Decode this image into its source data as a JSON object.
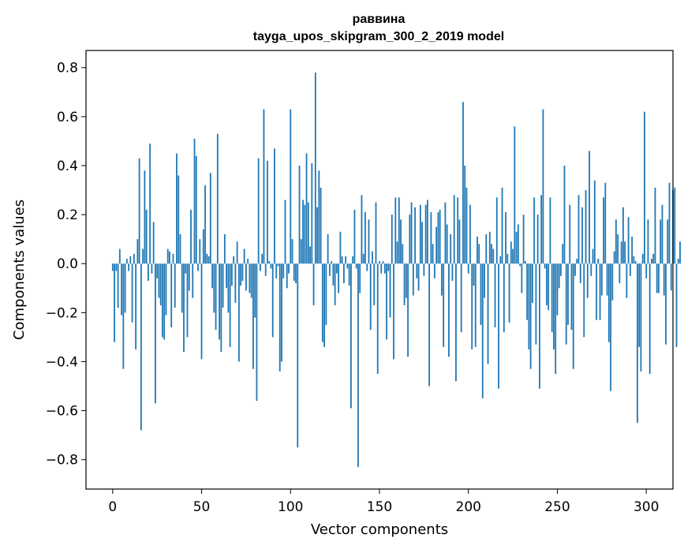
{
  "chart_data": {
    "type": "bar",
    "title": "раввина",
    "subtitle": "tayga_upos_skipgram_300_2_2019 model",
    "xlabel": "Vector components",
    "ylabel": "Components values",
    "xlim": [
      -15,
      315
    ],
    "ylim": [
      -0.92,
      0.87
    ],
    "xticks": [
      0,
      50,
      100,
      150,
      200,
      250,
      300
    ],
    "yticks": [
      -0.8,
      -0.6,
      -0.4,
      -0.2,
      0.0,
      0.2,
      0.4,
      0.6,
      0.8
    ],
    "xtick_labels": [
      "0",
      "50",
      "100",
      "150",
      "200",
      "250",
      "300"
    ],
    "ytick_labels": [
      "−0.8",
      "−0.6",
      "−0.4",
      "−0.2",
      "0.0",
      "0.2",
      "0.4",
      "0.6",
      "0.8"
    ],
    "grid": false,
    "bar_color": "#1f77b4",
    "values": [
      -0.03,
      -0.32,
      -0.03,
      -0.18,
      0.06,
      -0.21,
      -0.43,
      -0.2,
      0.02,
      -0.03,
      0.03,
      -0.24,
      0.04,
      -0.35,
      0.1,
      0.43,
      -0.68,
      0.06,
      0.38,
      0.22,
      -0.07,
      0.49,
      -0.04,
      0.17,
      -0.57,
      -0.06,
      -0.14,
      -0.17,
      -0.3,
      -0.31,
      -0.21,
      0.06,
      0.05,
      -0.26,
      0.04,
      -0.18,
      0.45,
      0.36,
      0.12,
      -0.2,
      -0.36,
      -0.04,
      -0.3,
      -0.11,
      0.22,
      -0.14,
      0.51,
      0.44,
      -0.03,
      0.1,
      -0.39,
      0.14,
      0.32,
      0.04,
      0.03,
      0.37,
      -0.1,
      -0.2,
      -0.27,
      0.53,
      -0.31,
      -0.36,
      -0.18,
      0.12,
      -0.1,
      -0.2,
      -0.34,
      -0.09,
      0.03,
      -0.16,
      0.09,
      -0.4,
      -0.09,
      -0.07,
      0.06,
      -0.11,
      0.02,
      -0.12,
      -0.14,
      -0.43,
      -0.22,
      -0.56,
      0.43,
      -0.03,
      0.04,
      0.63,
      -0.05,
      0.42,
      0.01,
      -0.02,
      -0.3,
      0.47,
      -0.06,
      -0.01,
      -0.44,
      -0.4,
      -0.06,
      0.26,
      -0.1,
      -0.04,
      0.63,
      0.1,
      -0.07,
      -0.08,
      -0.75,
      0.4,
      0.1,
      0.26,
      0.24,
      0.45,
      0.25,
      0.07,
      0.41,
      -0.17,
      0.78,
      0.23,
      0.38,
      0.31,
      -0.32,
      -0.34,
      -0.25,
      0.12,
      -0.05,
      0.01,
      -0.09,
      -0.17,
      -0.04,
      -0.12,
      0.13,
      0.03,
      -0.08,
      0.03,
      -0.02,
      -0.09,
      -0.59,
      0.03,
      0.22,
      -0.02,
      -0.83,
      -0.12,
      0.28,
      0.04,
      0.21,
      -0.03,
      0.18,
      -0.27,
      0.05,
      -0.17,
      0.25,
      -0.45,
      0.01,
      -0.04,
      0.01,
      -0.04,
      -0.31,
      -0.03,
      -0.22,
      0.2,
      -0.39,
      0.27,
      0.09,
      0.27,
      0.18,
      0.08,
      -0.17,
      -0.14,
      -0.38,
      0.2,
      0.25,
      -0.13,
      0.23,
      -0.06,
      -0.11,
      0.24,
      0.17,
      -0.05,
      0.24,
      0.26,
      -0.5,
      0.21,
      0.08,
      -0.06,
      0.15,
      0.21,
      0.22,
      -0.13,
      -0.34,
      0.25,
      0.16,
      -0.38,
      0.12,
      -0.07,
      0.28,
      -0.48,
      0.27,
      0.18,
      -0.28,
      0.66,
      0.4,
      0.31,
      -0.04,
      0.24,
      -0.35,
      -0.09,
      -0.34,
      0.11,
      0.08,
      -0.25,
      -0.55,
      -0.14,
      0.12,
      -0.41,
      0.13,
      0.08,
      0.06,
      -0.26,
      0.27,
      -0.51,
      0.03,
      0.31,
      -0.28,
      0.21,
      0.04,
      -0.24,
      0.09,
      0.06,
      0.56,
      0.13,
      0.16,
      -0.01,
      -0.12,
      0.2,
      0.01,
      -0.23,
      -0.35,
      -0.43,
      -0.16,
      0.27,
      -0.33,
      0.2,
      -0.51,
      0.28,
      0.63,
      -0.02,
      -0.17,
      -0.19,
      0.27,
      -0.28,
      -0.35,
      -0.45,
      -0.21,
      -0.1,
      -0.05,
      0.08,
      0.4,
      -0.33,
      -0.25,
      0.24,
      -0.27,
      -0.43,
      -0.05,
      0.02,
      0.28,
      -0.08,
      0.23,
      -0.3,
      0.3,
      -0.14,
      0.46,
      -0.05,
      0.06,
      0.34,
      -0.23,
      0.02,
      -0.23,
      -0.13,
      0.27,
      0.33,
      -0.13,
      -0.32,
      -0.52,
      -0.15,
      0.05,
      0.18,
      0.12,
      -0.08,
      0.09,
      0.23,
      0.09,
      -0.14,
      0.19,
      -0.05,
      0.11,
      0.03,
      0.01,
      -0.65,
      -0.34,
      -0.44,
      0.04,
      0.62,
      -0.06,
      0.18,
      -0.45,
      0.02,
      0.04,
      0.31,
      -0.12,
      -0.12,
      0.18,
      0.24,
      -0.13,
      -0.33,
      0.18,
      0.33,
      -0.11,
      0.3,
      0.31,
      -0.34,
      0.02,
      0.09
    ]
  }
}
